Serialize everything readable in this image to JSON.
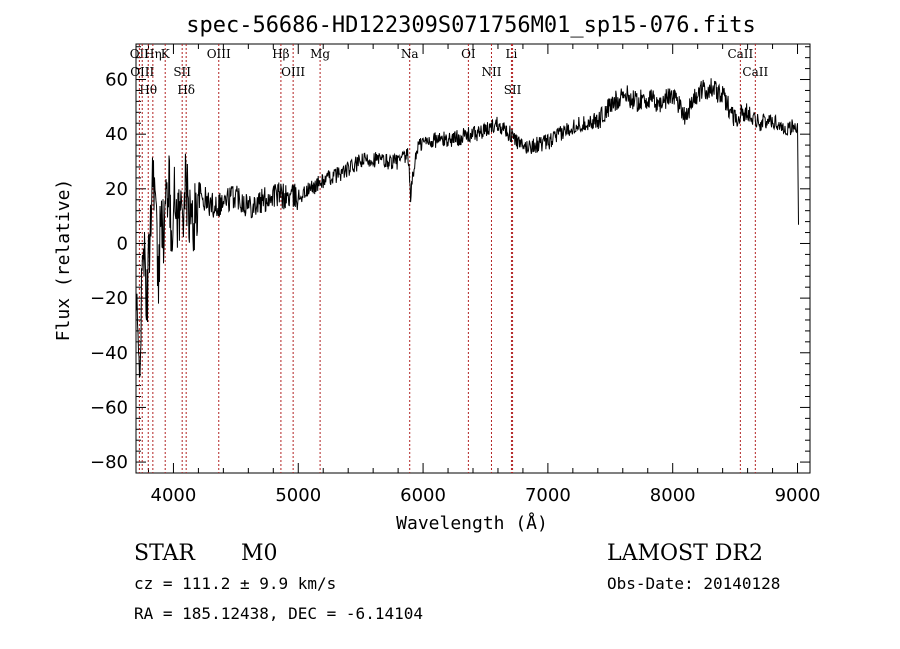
{
  "chart_data": {
    "type": "line",
    "title": "spec-56686-HD122309S071756M01_sp15-076.fits",
    "xlabel": "Wavelength (Å)",
    "ylabel": "Flux (relative)",
    "xlim": [
      3700,
      9100
    ],
    "ylim": [
      -84,
      73
    ],
    "x_ticks": [
      4000,
      5000,
      6000,
      7000,
      8000,
      9000
    ],
    "x_tick_labels": [
      "4000",
      "5000",
      "6000",
      "7000",
      "8000",
      "9000"
    ],
    "y_ticks": [
      -80,
      -60,
      -40,
      -20,
      0,
      20,
      40,
      60
    ],
    "y_tick_labels": [
      "−80",
      "−60",
      "−40",
      "−20",
      "0",
      "20",
      "40",
      "60"
    ],
    "line_color": "#000000",
    "marker_color": "#b22222",
    "grid": false,
    "series": [
      {
        "x": [
          3700,
          3720,
          3740,
          3760,
          3780,
          3800,
          3820,
          3840,
          3860,
          3880,
          3900,
          3920,
          3940,
          3960,
          3980,
          4000,
          4050,
          4100,
          4150,
          4200,
          4300,
          4400,
          4500,
          4600,
          4700,
          4800,
          4900,
          5000,
          5100,
          5200,
          5300,
          5400,
          5500,
          5600,
          5700,
          5800,
          5880,
          5900,
          5950,
          6000,
          6100,
          6200,
          6300,
          6400,
          6500,
          6550,
          6600,
          6700,
          6800,
          6900,
          7000,
          7200,
          7400,
          7600,
          7700,
          7800,
          7900,
          8000,
          8100,
          8200,
          8300,
          8400,
          8500,
          8600,
          8700,
          8800,
          8900,
          9000,
          9010
        ],
        "y": [
          -20,
          -45,
          -30,
          5,
          -25,
          -10,
          15,
          30,
          10,
          -20,
          20,
          0,
          15,
          25,
          5,
          15,
          10,
          20,
          5,
          18,
          14,
          15,
          18,
          14,
          15,
          18,
          17,
          17,
          20,
          23,
          25,
          27,
          30,
          31,
          30,
          30,
          32,
          18,
          35,
          37,
          38,
          38,
          39,
          40,
          41,
          43,
          44,
          40,
          35,
          36,
          37,
          43,
          45,
          55,
          52,
          53,
          51,
          55,
          47,
          55,
          57,
          54,
          46,
          48,
          44,
          45,
          42,
          43,
          0
        ]
      }
    ],
    "line_markers": [
      {
        "label": "Hθ",
        "wavelength": 3798
      },
      {
        "label": "OII",
        "wavelength": 3727
      },
      {
        "label": "OIII",
        "wavelength": 3750
      },
      {
        "label": "Hη",
        "wavelength": 3835
      },
      {
        "label": "K",
        "wavelength": 3934
      },
      {
        "label": "SII",
        "wavelength": 4070
      },
      {
        "label": "Hδ",
        "wavelength": 4102
      },
      {
        "label": "OIII",
        "wavelength": 4363
      },
      {
        "label": "Hβ",
        "wavelength": 4861
      },
      {
        "label": "OIII",
        "wavelength": 4959
      },
      {
        "label": "Mg",
        "wavelength": 5175
      },
      {
        "label": "Na",
        "wavelength": 5893
      },
      {
        "label": "OI",
        "wavelength": 6363
      },
      {
        "label": "NII",
        "wavelength": 6548
      },
      {
        "label": "Li",
        "wavelength": 6708
      },
      {
        "label": "SII",
        "wavelength": 6717
      },
      {
        "label": "CaII",
        "wavelength": 8542
      },
      {
        "label": "CaII",
        "wavelength": 8662
      }
    ]
  },
  "info": {
    "object_class": "STAR",
    "subclass": "M0",
    "survey": "LAMOST DR2",
    "cz": "cz = 111.2 ± 9.9 km/s",
    "obs_date": "Obs-Date: 20140128",
    "coords": "RA = 185.12438, DEC =  -6.14104"
  }
}
